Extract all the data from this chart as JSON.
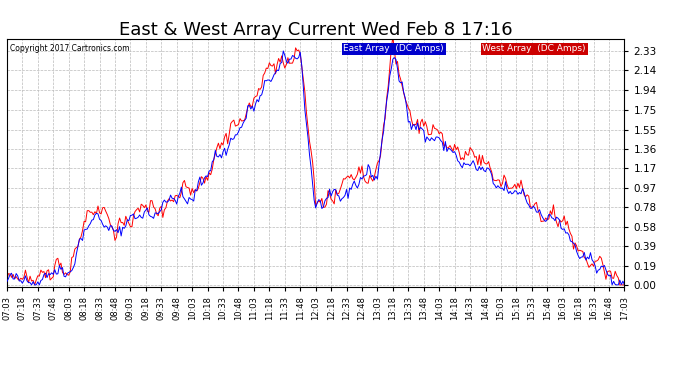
{
  "title": "East & West Array Current Wed Feb 8 17:16",
  "copyright": "Copyright 2017 Cartronics.com",
  "legend_labels": [
    "East Array  (DC Amps)",
    "West Array  (DC Amps)"
  ],
  "line_colors": [
    "blue",
    "red"
  ],
  "yticks": [
    0.0,
    0.19,
    0.39,
    0.58,
    0.78,
    0.97,
    1.17,
    1.36,
    1.55,
    1.75,
    1.94,
    2.14,
    2.33
  ],
  "ylim": [
    -0.02,
    2.45
  ],
  "xtick_labels": [
    "07:03",
    "07:18",
    "07:33",
    "07:48",
    "08:03",
    "08:18",
    "08:33",
    "08:48",
    "09:03",
    "09:18",
    "09:33",
    "09:48",
    "10:03",
    "10:18",
    "10:33",
    "10:48",
    "11:03",
    "11:18",
    "11:33",
    "11:48",
    "12:03",
    "12:18",
    "12:33",
    "12:48",
    "13:03",
    "13:18",
    "13:33",
    "13:48",
    "14:03",
    "14:18",
    "14:33",
    "14:48",
    "15:03",
    "15:18",
    "15:33",
    "15:48",
    "16:03",
    "16:18",
    "16:33",
    "16:48",
    "17:03"
  ],
  "background_color": "#ffffff",
  "grid_color": "#bbbbbb",
  "title_fontsize": 13,
  "legend_bg_east": "#0000cc",
  "legend_bg_west": "#cc0000",
  "legend_text_color": "#ffffff"
}
